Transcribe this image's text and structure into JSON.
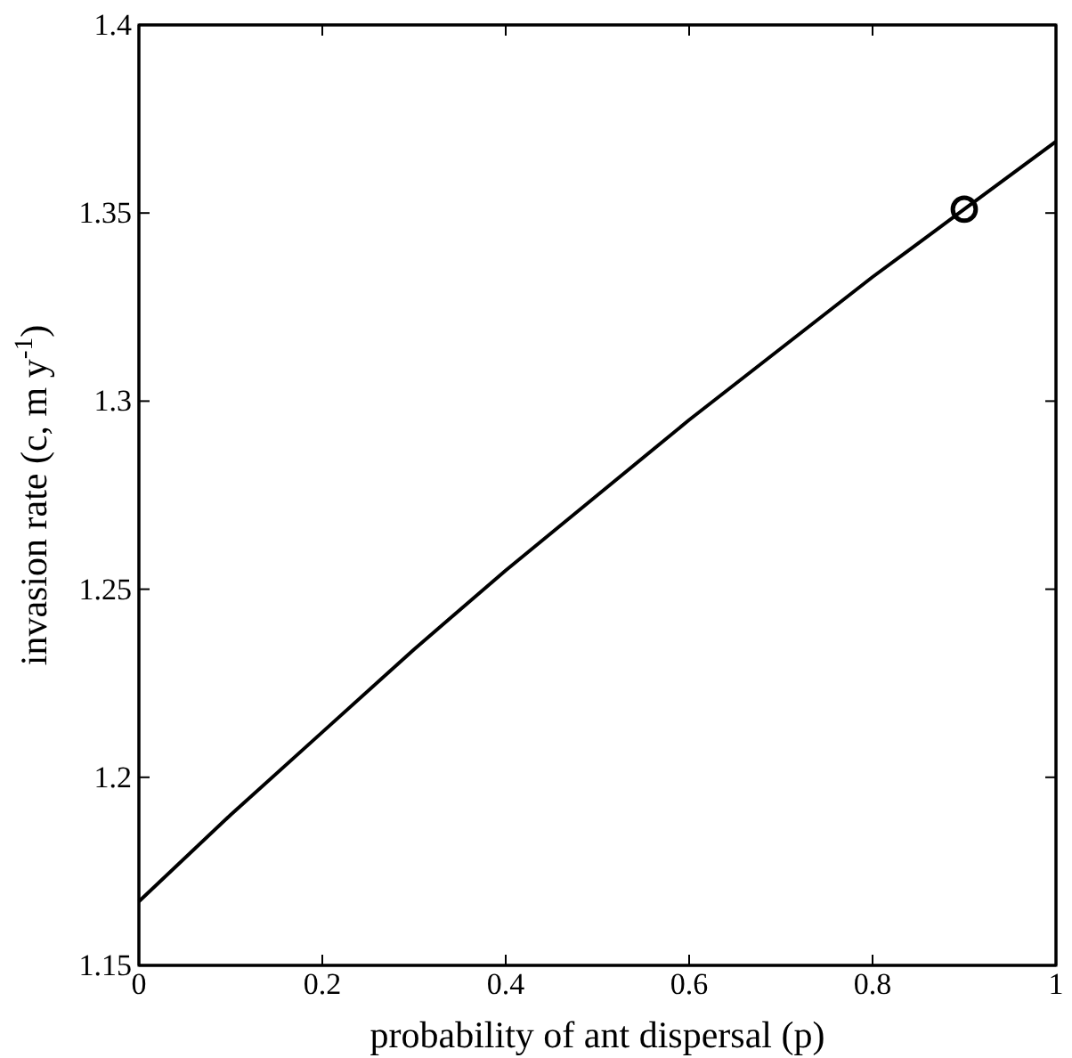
{
  "chart_data": {
    "type": "line",
    "xlabel": "probability of ant dispersal (p)",
    "ylabel": "invasion rate (c, m y$^{-1}$)",
    "xlim": [
      0,
      1
    ],
    "ylim": [
      1.15,
      1.4
    ],
    "xticks": [
      0,
      0.2,
      0.4,
      0.6,
      0.8,
      1
    ],
    "yticks": [
      1.15,
      1.2,
      1.25,
      1.3,
      1.35,
      1.4
    ],
    "grid": false,
    "series": [
      {
        "type": "line",
        "color": "#000000",
        "marker": "none",
        "line_style": "solid",
        "x": [
          0,
          0.1,
          0.2,
          0.3,
          0.4,
          0.5,
          0.6,
          0.7,
          0.8,
          0.9,
          1
        ],
        "values": [
          1.167,
          1.19,
          1.212,
          1.234,
          1.255,
          1.275,
          1.295,
          1.314,
          1.333,
          1.351,
          1.369
        ]
      },
      {
        "type": "scatter",
        "color": "#000000",
        "marker": "circle",
        "x": [
          0.9
        ],
        "values": [
          1.351
        ]
      }
    ]
  }
}
